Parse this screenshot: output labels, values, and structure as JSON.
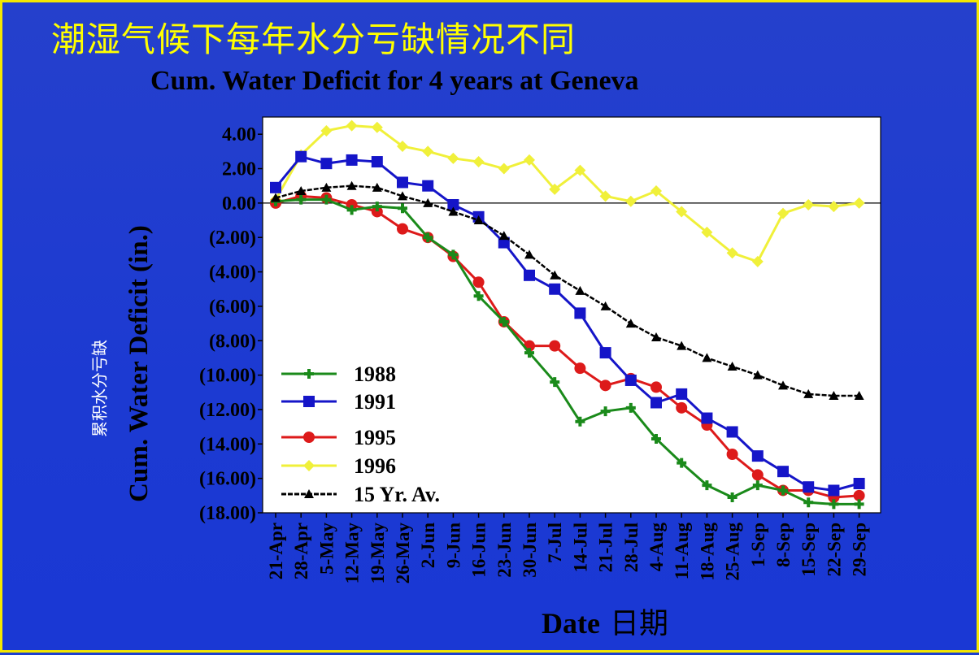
{
  "slide": {
    "title": "潮湿气候下每年水分亏缺情况不同",
    "cn_ylabel": "累积水分亏缺",
    "xlabel_cn": "日期"
  },
  "colors": {
    "background": "#1c3fd0",
    "border": "#f5e800",
    "title": "#ffff00",
    "plot_bg": "#ffffff",
    "s1988": "#1a8a1a",
    "s1991": "#1515c8",
    "s1995": "#dd1a1a",
    "s1996": "#f0f03a",
    "s15yr": "#000000"
  },
  "chart_data": {
    "type": "line",
    "title": "Cum. Water Deficit for 4 years at Geneva",
    "xlabel": "Date",
    "ylabel": "Cum. Water Deficit (in.)",
    "ylim": [
      -18,
      5
    ],
    "yticks": [
      4,
      2,
      0,
      -2,
      -4,
      -6,
      -8,
      -10,
      -12,
      -14,
      -16,
      -18
    ],
    "ytick_labels": [
      "4.00",
      "2.00",
      "0.00",
      "(2.00)",
      "(4.00)",
      "(6.00)",
      "(8.00)",
      "(10.00)",
      "(12.00)",
      "(14.00)",
      "(16.00)",
      "(18.00)"
    ],
    "zero_line": true,
    "grid": false,
    "legend_position": "bottom-left",
    "categories": [
      "21-Apr",
      "28-Apr",
      "5-May",
      "12-May",
      "19-May",
      "26-May",
      "2-Jun",
      "9-Jun",
      "16-Jun",
      "23-Jun",
      "30-Jun",
      "7-Jul",
      "14-Jul",
      "21-Jul",
      "28-Jul",
      "4-Aug",
      "11-Aug",
      "18-Aug",
      "25-Aug",
      "1-Sep",
      "8-Sep",
      "15-Sep",
      "22-Sep",
      "29-Sep"
    ],
    "series": [
      {
        "name": "1988",
        "color": "#1a8a1a",
        "marker": "plus",
        "values": [
          0.1,
          0.2,
          0.2,
          -0.4,
          -0.2,
          -0.3,
          -2.0,
          -3.0,
          -5.4,
          -6.9,
          -8.7,
          -10.4,
          -12.7,
          -12.1,
          -11.9,
          -13.7,
          -15.1,
          -16.4,
          -17.1,
          -16.4,
          -16.7,
          -17.4,
          -17.5,
          -17.5
        ]
      },
      {
        "name": "1991",
        "color": "#1515c8",
        "marker": "square",
        "values": [
          0.9,
          2.7,
          2.3,
          2.5,
          2.4,
          1.2,
          1.0,
          -0.1,
          -0.8,
          -2.3,
          -4.2,
          -5.0,
          -6.4,
          -8.7,
          -10.3,
          -11.6,
          -11.1,
          -12.5,
          -13.3,
          -14.7,
          -15.6,
          -16.5,
          -16.7,
          -16.3
        ]
      },
      {
        "name": "1995",
        "color": "#dd1a1a",
        "marker": "circle",
        "values": [
          0.0,
          0.4,
          0.3,
          -0.1,
          -0.5,
          -1.5,
          -2.0,
          -3.1,
          -4.6,
          -6.9,
          -8.3,
          -8.3,
          -9.6,
          -10.6,
          -10.2,
          -10.7,
          -11.9,
          -12.9,
          -14.6,
          -15.8,
          -16.7,
          -16.7,
          -17.1,
          -17.0
        ]
      },
      {
        "name": "1996",
        "color": "#f0f03a",
        "marker": "diamond",
        "values": [
          0.2,
          2.8,
          4.2,
          4.5,
          4.4,
          3.3,
          3.0,
          2.6,
          2.4,
          2.0,
          2.5,
          0.8,
          1.9,
          0.4,
          0.1,
          0.7,
          -0.5,
          -1.7,
          -2.9,
          -3.4,
          -0.6,
          -0.1,
          -0.2,
          0.0
        ]
      },
      {
        "name": "15 Yr. Av.",
        "color": "#000000",
        "marker": "triangle",
        "values": [
          0.3,
          0.7,
          0.9,
          1.0,
          0.9,
          0.4,
          0.0,
          -0.5,
          -1.0,
          -1.9,
          -3.0,
          -4.2,
          -5.1,
          -6.0,
          -7.0,
          -7.8,
          -8.3,
          -9.0,
          -9.5,
          -10.0,
          -10.6,
          -11.1,
          -11.2,
          -11.2
        ]
      }
    ]
  }
}
